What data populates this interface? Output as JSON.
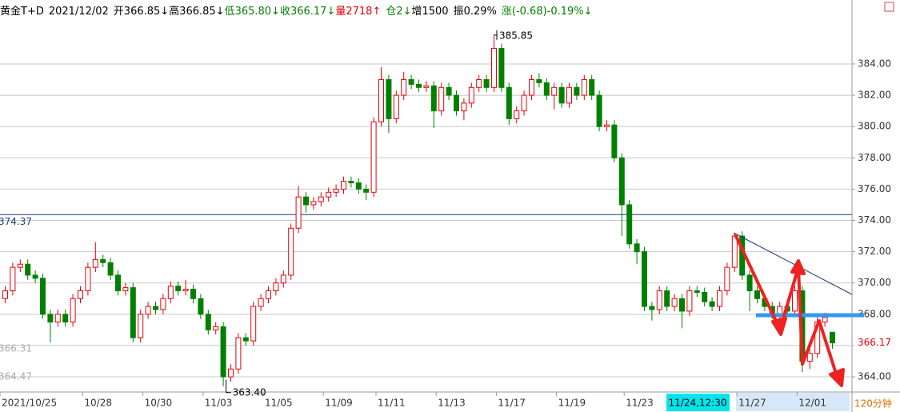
{
  "chart_data": {
    "type": "candlestick",
    "header": [
      {
        "text": "黄金T+D",
        "color": "#000000"
      },
      {
        "text": "2021/12/02",
        "color": "#000000"
      },
      {
        "text": "开366.85↓高366.85↓",
        "color": "#000000"
      },
      {
        "text": "低365.80↓收366.17↓",
        "color": "#008000"
      },
      {
        "text": "量2718↑",
        "color": "#e8000b"
      },
      {
        "text": "仓2↓",
        "color": "#008000"
      },
      {
        "text": "增1500",
        "color": "#000000"
      },
      {
        "text": "振0.29%",
        "color": "#000000"
      },
      {
        "text": "涨(-0.68)-0.19%↓",
        "color": "#008000"
      }
    ],
    "categories": [
      "2021/10/25",
      null,
      null,
      null,
      null,
      null,
      null,
      null,
      null,
      null,
      null,
      "10/28",
      null,
      null,
      null,
      null,
      null,
      null,
      null,
      "10/30",
      null,
      null,
      null,
      null,
      null,
      null,
      null,
      "11/03",
      null,
      null,
      null,
      null,
      null,
      null,
      null,
      "11/05",
      null,
      null,
      null,
      null,
      null,
      null,
      null,
      "11/09",
      null,
      null,
      null,
      null,
      null,
      null,
      "11/11",
      null,
      null,
      null,
      null,
      null,
      null,
      null,
      "11/13",
      null,
      null,
      null,
      null,
      null,
      null,
      null,
      "11/17",
      null,
      null,
      null,
      null,
      null,
      null,
      null,
      "11/19",
      null,
      null,
      null,
      null,
      null,
      null,
      null,
      null,
      "11/23",
      null,
      null,
      null,
      null,
      null,
      null,
      null,
      null,
      null,
      null,
      null,
      null,
      null,
      null,
      "11/27",
      null,
      null,
      null,
      null,
      null,
      null,
      null,
      "12/01",
      null,
      null,
      null,
      null
    ],
    "open": [
      369.0,
      369.5,
      371,
      371.2,
      370.5,
      370.3,
      368,
      367.5,
      368,
      367.5,
      369,
      369.5,
      371,
      371.5,
      371.3,
      370.5,
      369.5,
      369.7,
      366.5,
      368,
      368.5,
      368.3,
      369,
      369.8,
      369.5,
      369.6,
      369,
      368,
      367,
      367.2,
      364,
      364.5,
      366.5,
      366.3,
      368.5,
      369,
      369.5,
      370,
      370.5,
      373.5,
      375.5,
      375,
      375.2,
      375.5,
      375.8,
      376,
      376.5,
      376.4,
      376,
      375.8,
      380.3,
      383,
      380.5,
      382,
      383,
      382.7,
      382.5,
      382.6,
      381,
      382.5,
      382,
      381,
      381.5,
      382.5,
      383,
      382.5,
      385,
      382.5,
      380.5,
      381,
      382,
      383,
      382.8,
      382,
      382.5,
      381.5,
      382.5,
      382,
      383,
      382,
      380,
      380.1,
      378,
      375,
      372.5,
      372,
      368.5,
      368.3,
      369.5,
      368.5,
      369,
      368.2,
      369.5,
      369.4,
      368.8,
      368.5,
      369.5,
      371,
      373,
      370.5,
      369.5,
      369,
      368.5,
      368,
      368.5,
      368.2,
      369.5,
      365,
      365.5,
      367.5,
      366.85
    ],
    "high": [
      369.8,
      371.3,
      371.5,
      371.5,
      370.8,
      370.6,
      368.3,
      368.3,
      368.3,
      369.3,
      369.8,
      371.3,
      372.6,
      371.8,
      371.6,
      370.8,
      370.0,
      370.0,
      368.3,
      368.8,
      368.8,
      369.3,
      370.1,
      370.1,
      370.2,
      369.9,
      369.3,
      368.3,
      367.5,
      367.5,
      364.8,
      366.8,
      366.8,
      368.8,
      369.3,
      369.8,
      370.3,
      370.8,
      373.8,
      376.2,
      375.8,
      375.5,
      375.8,
      376.1,
      376.3,
      376.8,
      376.8,
      376.7,
      376.3,
      380.6,
      383.8,
      383.3,
      382.3,
      383.5,
      383.3,
      383.0,
      382.9,
      382.9,
      382.8,
      382.8,
      382.3,
      381.8,
      382.8,
      383.3,
      383.3,
      385.85,
      385.3,
      382.8,
      381.3,
      382.3,
      383.3,
      383.4,
      383.1,
      382.8,
      382.8,
      382.8,
      382.8,
      383.3,
      383.3,
      382.3,
      380.4,
      380.4,
      378.3,
      375.3,
      372.8,
      372.3,
      368.8,
      369.8,
      369.8,
      369.3,
      369.3,
      369.8,
      369.8,
      369.7,
      369.1,
      369.8,
      371.3,
      373.2,
      373.3,
      370.8,
      369.8,
      369.3,
      368.8,
      368.8,
      368.8,
      369.8,
      369.8,
      365.8,
      367.8,
      368.1,
      366.85
    ],
    "low": [
      368.7,
      369.2,
      370.7,
      370.2,
      370.0,
      367.7,
      366.2,
      367.2,
      367.2,
      367.2,
      368.7,
      369.2,
      370.7,
      371.0,
      370.2,
      369.2,
      369.2,
      366.2,
      366.2,
      367.7,
      368.0,
      368.0,
      368.7,
      369.2,
      369.2,
      368.7,
      367.7,
      366.7,
      366.7,
      363.4,
      363.7,
      364.2,
      366.0,
      366.0,
      368.2,
      368.7,
      369.2,
      369.7,
      370.2,
      373.2,
      374.5,
      374.7,
      374.9,
      375.2,
      375.5,
      375.7,
      376.1,
      375.7,
      375.3,
      375.5,
      380.0,
      379.6,
      380.2,
      381.7,
      382.4,
      382.2,
      382.2,
      379.9,
      380.7,
      381.7,
      380.7,
      380.4,
      381.2,
      382.2,
      382.2,
      382.2,
      382.2,
      380.1,
      380.2,
      380.7,
      381.7,
      382.5,
      381.7,
      381.1,
      381.2,
      381.2,
      381.7,
      381.7,
      381.7,
      379.7,
      379.7,
      377.7,
      373.0,
      372.2,
      371.2,
      368.2,
      367.6,
      368.0,
      368.2,
      368.2,
      367.1,
      367.9,
      369.1,
      368.5,
      368.2,
      368.2,
      369.2,
      370.7,
      370.2,
      368.2,
      368.7,
      368.2,
      367.7,
      367.7,
      367.9,
      367.9,
      364.3,
      364.5,
      365.2,
      367.2,
      365.8
    ],
    "close": [
      369.5,
      371,
      371.2,
      370.5,
      370.3,
      368,
      367.5,
      368,
      367.5,
      369,
      369.5,
      371,
      371.5,
      371.3,
      370.5,
      369.5,
      369.7,
      366.5,
      368,
      368.5,
      368.3,
      369,
      369.8,
      369.5,
      369.6,
      369,
      368,
      367,
      367.2,
      364,
      364.5,
      366.5,
      366.3,
      368.5,
      369,
      369.5,
      370,
      370.5,
      373.5,
      375.5,
      375,
      375.2,
      375.5,
      375.8,
      376,
      376.5,
      376.4,
      376,
      375.8,
      380.3,
      383,
      380.5,
      382,
      383,
      382.7,
      382.5,
      382.6,
      381,
      382.5,
      382,
      381,
      381.5,
      382.5,
      383,
      382.5,
      385,
      382.5,
      380.5,
      381,
      382,
      383,
      382.8,
      382,
      382.5,
      381.5,
      382.5,
      382,
      383,
      382,
      380,
      380.1,
      378,
      375,
      372.5,
      372,
      368.5,
      368.3,
      369.5,
      368.5,
      369,
      368.2,
      369.5,
      369.4,
      368.8,
      368.5,
      369.5,
      371,
      373,
      370.5,
      369.5,
      369,
      368.5,
      368,
      368.5,
      368.2,
      369.5,
      365,
      365.5,
      367.5,
      367.8,
      366.17
    ],
    "up_color": "#e8000b",
    "down_color": "#008000",
    "ylim": [
      363.03,
      388.09
    ],
    "yticks": [
      {
        "value": 364,
        "label": "364.00"
      },
      {
        "value": 366,
        "label": "366.00"
      },
      {
        "value": 368,
        "label": "368.00"
      },
      {
        "value": 370,
        "label": "370.00"
      },
      {
        "value": 372,
        "label": "372.00"
      },
      {
        "value": 374,
        "label": "374.00"
      },
      {
        "value": 376,
        "label": "376.00"
      },
      {
        "value": 378,
        "label": "378.00"
      },
      {
        "value": 380,
        "label": "380.00"
      },
      {
        "value": 382,
        "label": "382.00"
      },
      {
        "value": 384,
        "label": "384.00"
      }
    ],
    "grid": true,
    "ref_line": 374.37,
    "left_labels": [
      "366.31",
      "364.47"
    ],
    "annotations": [
      "385.85",
      "363.40"
    ],
    "cursor_label": "11/24,12:30",
    "period": "120分钟"
  }
}
